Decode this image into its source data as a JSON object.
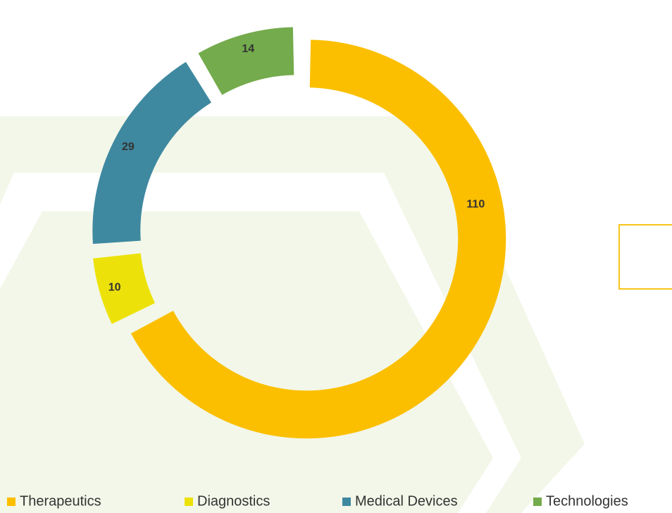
{
  "chart_data": {
    "type": "pie",
    "donut": true,
    "categories": [
      "Therapeutics",
      "Diagnostics",
      "Medical Devices",
      "Technologies"
    ],
    "values": [
      110,
      10,
      29,
      14
    ],
    "colors": [
      "#fbbf00",
      "#ece20a",
      "#3f89a0",
      "#74ab4c"
    ],
    "legend": "bottom"
  }
}
